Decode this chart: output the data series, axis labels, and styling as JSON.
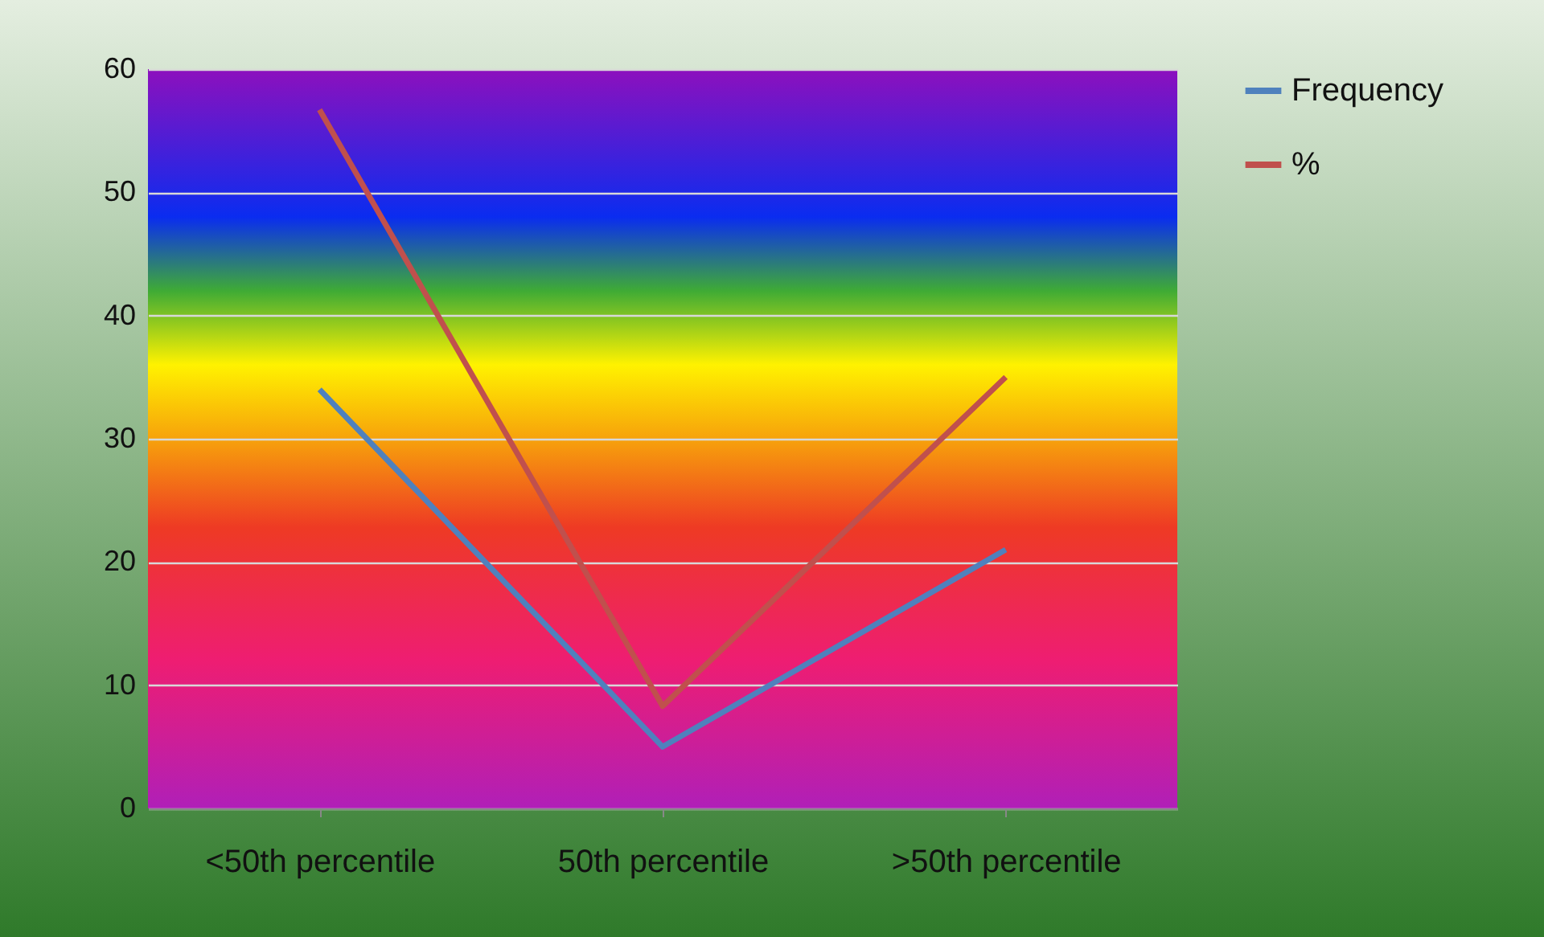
{
  "chart_data": {
    "type": "line",
    "categories": [
      "<50th percentile",
      "50th percentile",
      ">50th percentile"
    ],
    "series": [
      {
        "name": "Frequency",
        "color": "#4f81bd",
        "values": [
          34,
          5,
          21
        ]
      },
      {
        "name": "%",
        "color": "#c0504d",
        "values": [
          56.7,
          8.3,
          35
        ]
      }
    ],
    "ylim": [
      0,
      60
    ],
    "yticks": [
      0,
      10,
      20,
      30,
      40,
      50,
      60
    ],
    "grid": "y",
    "legend": "right",
    "marker": "none",
    "line_style": "solid"
  }
}
